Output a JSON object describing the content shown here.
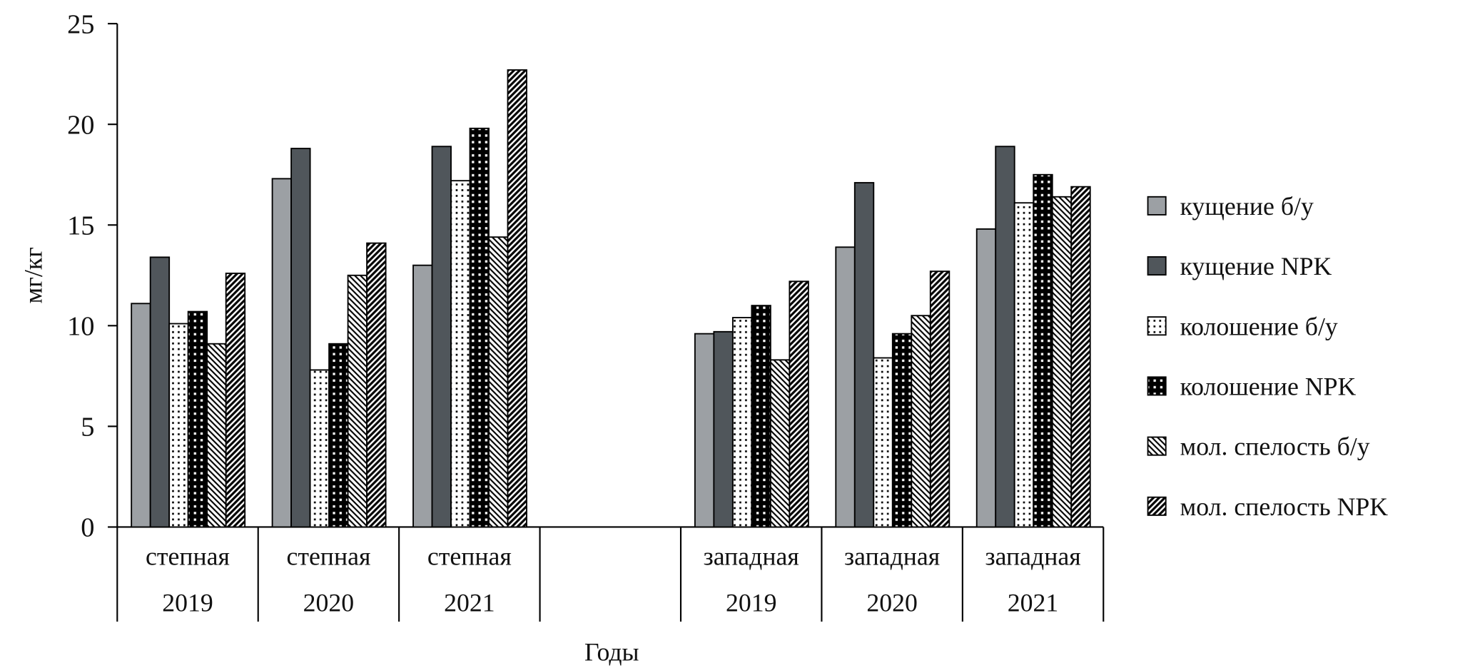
{
  "chart_data": {
    "type": "bar",
    "title": "",
    "xlabel": "Годы",
    "ylabel": "мг/кг",
    "ylim": [
      0,
      25
    ],
    "yticks": [
      "0",
      "5",
      "10",
      "15",
      "20",
      "25"
    ],
    "grid": false,
    "legend_position": "right",
    "categories": [
      {
        "line1": "степная",
        "line2": "2019"
      },
      {
        "line1": "степная",
        "line2": "2020"
      },
      {
        "line1": "степная",
        "line2": "2021"
      },
      {
        "line1": "",
        "line2": ""
      },
      {
        "line1": "западная",
        "line2": "2019"
      },
      {
        "line1": "западная",
        "line2": "2020"
      },
      {
        "line1": "западная",
        "line2": "2021"
      }
    ],
    "series": [
      {
        "name": "кущение б/у",
        "fill": "#9ca0a4",
        "values": [
          11.1,
          17.3,
          13.0,
          null,
          9.6,
          13.9,
          14.8
        ]
      },
      {
        "name": "кущение NPK",
        "fill": "#50565b",
        "values": [
          13.4,
          18.8,
          18.9,
          null,
          9.7,
          17.1,
          18.9
        ]
      },
      {
        "name": "колошение б/у",
        "fill": "pattern-dots-light",
        "values": [
          10.1,
          7.8,
          17.2,
          null,
          10.4,
          8.4,
          16.1
        ]
      },
      {
        "name": "колошение NPK",
        "fill": "pattern-dots-dark",
        "values": [
          10.7,
          9.1,
          19.8,
          null,
          11.0,
          9.6,
          17.5
        ]
      },
      {
        "name": "мол. спелость б/у",
        "fill": "pattern-back-diag",
        "values": [
          9.1,
          12.5,
          14.4,
          null,
          8.3,
          10.5,
          16.4
        ]
      },
      {
        "name": "мол. спелость NPK",
        "fill": "pattern-fwd-diag",
        "values": [
          12.6,
          14.1,
          22.7,
          null,
          12.2,
          12.7,
          16.9
        ]
      }
    ]
  }
}
